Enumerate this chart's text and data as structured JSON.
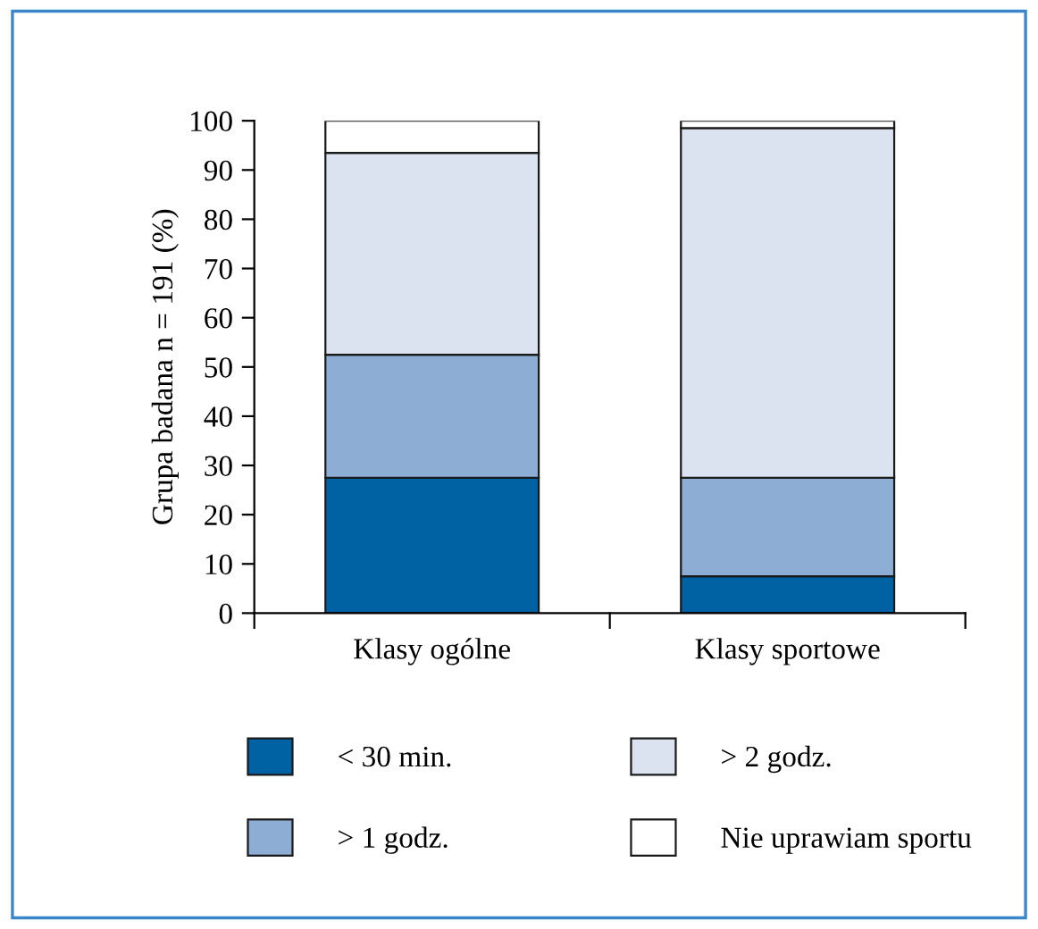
{
  "chart_data": {
    "type": "bar",
    "stacked": true,
    "ylabel": "Grupa badana n = 191 (%)",
    "categories": [
      "Klasy ogólne",
      "Klasy sportowe"
    ],
    "series": [
      {
        "name": "< 30 min.",
        "color": "#0062a3",
        "values": [
          27.5,
          7.5
        ]
      },
      {
        "name": "> 1 godz.",
        "color": "#8eadd4",
        "values": [
          25,
          20
        ]
      },
      {
        "name": "> 2 godz.",
        "color": "#dbe2f0",
        "values": [
          41,
          71
        ]
      },
      {
        "name": "Nie uprawiam sportu",
        "color": "#ffffff",
        "values": [
          6.5,
          1.5
        ]
      }
    ],
    "ylim": [
      0,
      100
    ],
    "yticks": [
      0,
      10,
      20,
      30,
      40,
      50,
      60,
      70,
      80,
      90,
      100
    ],
    "grid": false,
    "legend": "bottom"
  }
}
